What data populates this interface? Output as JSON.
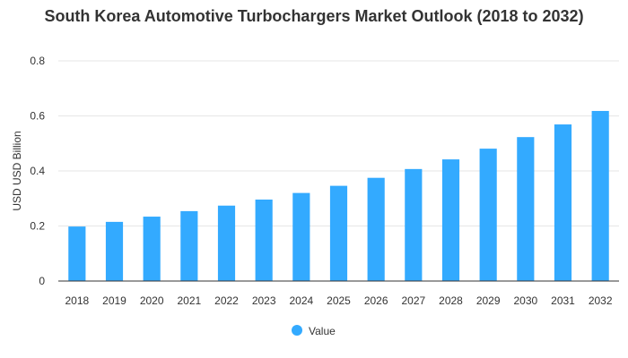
{
  "chart_data": {
    "type": "bar",
    "title": "South Korea Automotive Turbochargers Market Outlook (2018 to 2032)",
    "xlabel": "",
    "ylabel": "USD USD Billion",
    "ylim": [
      0,
      0.8
    ],
    "yticks": [
      0,
      0.2,
      0.4,
      0.6,
      0.8
    ],
    "ytick_labels": [
      "0",
      "0.2",
      "0.4",
      "0.6",
      "0.8"
    ],
    "grid": true,
    "legend_position": "bottom",
    "categories": [
      "2018",
      "2019",
      "2020",
      "2021",
      "2022",
      "2023",
      "2024",
      "2025",
      "2026",
      "2027",
      "2028",
      "2029",
      "2030",
      "2031",
      "2032"
    ],
    "series": [
      {
        "name": "Value",
        "color": "#33aaff",
        "values": [
          0.198,
          0.215,
          0.234,
          0.254,
          0.274,
          0.296,
          0.32,
          0.346,
          0.375,
          0.407,
          0.442,
          0.481,
          0.523,
          0.569,
          0.618
        ]
      }
    ]
  }
}
